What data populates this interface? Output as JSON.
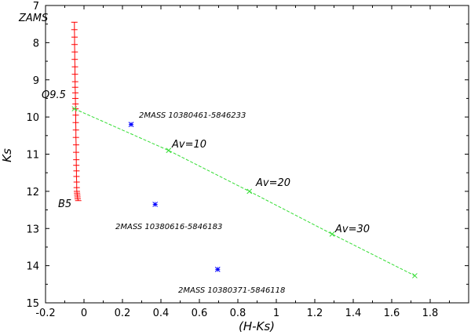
{
  "chart_data": {
    "type": "scatter",
    "xlabel": "(H-Ks)",
    "ylabel": "Ks",
    "xlim": [
      -0.2,
      2.0
    ],
    "ylim": [
      15,
      7
    ],
    "y_inverted": true,
    "grid": false,
    "x_ticks": [
      -0.2,
      0,
      0.2,
      0.4,
      0.6,
      0.8,
      1,
      1.2,
      1.4,
      1.6,
      1.8
    ],
    "x_tick_labels": [
      "-0.2",
      "0",
      "0.2",
      "0.4",
      "0.6",
      "0.8",
      "1",
      "1.2",
      "1.4",
      "1.6",
      "1.8"
    ],
    "y_ticks": [
      7,
      8,
      9,
      10,
      11,
      12,
      13,
      14,
      15
    ],
    "y_tick_labels": [
      "7",
      "8",
      "9",
      "10",
      "11",
      "12",
      "13",
      "14",
      "15"
    ],
    "zams": {
      "color": "#ff0000",
      "top_label": "ZAMS",
      "top_spectral_label": "O9.5",
      "bottom_label": "B5",
      "x": [
        -0.05,
        -0.05,
        -0.049,
        -0.049,
        -0.048,
        -0.048,
        -0.047,
        -0.047,
        -0.046,
        -0.046,
        -0.045,
        -0.045,
        -0.044,
        -0.044,
        -0.043,
        -0.043,
        -0.042,
        -0.042,
        -0.041,
        -0.041,
        -0.04,
        -0.04,
        -0.039,
        -0.039,
        -0.038,
        -0.038,
        -0.037,
        -0.036,
        -0.035,
        -0.034,
        -0.033,
        -0.03
      ],
      "y": [
        7.45,
        7.65,
        7.85,
        8.05,
        8.25,
        8.45,
        8.65,
        8.85,
        9.05,
        9.2,
        9.35,
        9.5,
        9.65,
        9.78,
        9.95,
        10.15,
        10.35,
        10.55,
        10.75,
        10.95,
        11.15,
        11.3,
        11.45,
        11.6,
        11.75,
        11.9,
        12.0,
        12.05,
        12.1,
        12.15,
        12.2,
        12.25
      ]
    },
    "reddening_vector": {
      "color": "#33dd33",
      "x": [
        -0.05,
        0.44,
        0.86,
        1.29,
        1.72
      ],
      "y": [
        9.78,
        10.9,
        12.0,
        13.15,
        14.27
      ],
      "labels": [
        "",
        "Av=10",
        "Av=20",
        "Av=30",
        ""
      ]
    },
    "stars": {
      "color": "#0000ff",
      "points": [
        {
          "name": "2MASS 10380461-5846233",
          "x": 0.245,
          "y": 10.2
        },
        {
          "name": "2MASS 10380616-5846183",
          "x": 0.37,
          "y": 12.35
        },
        {
          "name": "2MASS 10380371-5846118",
          "x": 0.695,
          "y": 14.1
        }
      ]
    }
  }
}
